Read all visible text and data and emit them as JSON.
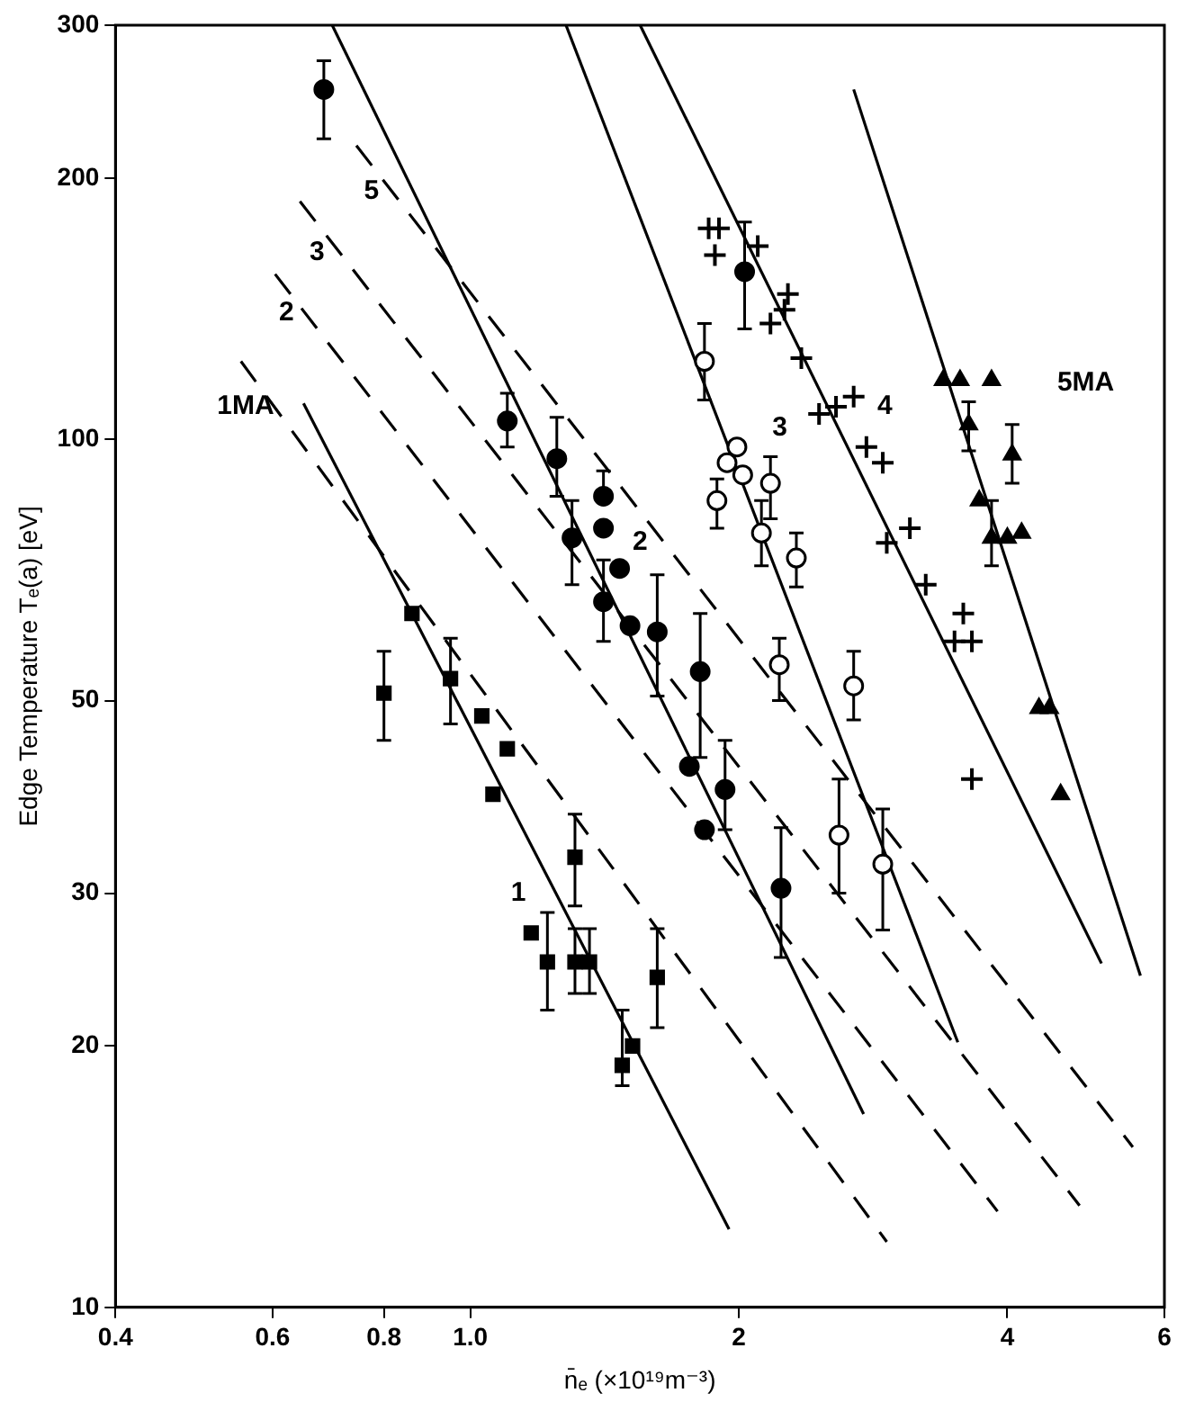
{
  "chart_data": {
    "type": "scatter",
    "xlabel": "n̄ₑ (×10¹⁹m⁻³)",
    "ylabel": "Edge Temperature Tₑ(a) [eV]",
    "log": "xy",
    "grid": false,
    "legend": false,
    "xlim": [
      0.4,
      6
    ],
    "ylim": [
      10,
      300
    ],
    "xticks": [
      0.4,
      0.6,
      0.8,
      {
        "value": 1,
        "label": "1.0"
      },
      2,
      4,
      6
    ],
    "yticks": [
      10,
      20,
      30,
      50,
      100,
      200,
      300
    ],
    "annotations": [
      "1MA",
      "2",
      "3",
      "5",
      "1",
      "2",
      "3",
      "4",
      "5MA"
    ],
    "series": [
      {
        "marker": "square",
        "color": "#000000",
        "x": [
          0.8,
          0.86,
          0.95,
          1.03,
          1.1,
          1.06,
          1.31,
          1.17,
          1.22,
          1.31,
          1.36,
          1.62,
          1.52,
          1.48
        ],
        "values": [
          51,
          63,
          53,
          48,
          44,
          39,
          33,
          27,
          25,
          25,
          25,
          24,
          20,
          19
        ],
        "errors": [
          [
            45,
            57
          ],
          null,
          [
            47,
            59
          ],
          null,
          null,
          null,
          [
            29,
            37
          ],
          null,
          [
            22,
            28.5
          ],
          [
            23,
            27.3
          ],
          [
            23,
            27.3
          ],
          [
            21,
            27.3
          ],
          null,
          [
            18,
            22
          ]
        ]
      },
      {
        "marker": "circle",
        "color": "#000000",
        "x": [
          0.685,
          1.1,
          1.25,
          1.3,
          1.41,
          1.41,
          1.47,
          1.41,
          1.51,
          1.62,
          1.81,
          1.76,
          1.93,
          1.83,
          2.23,
          2.03
        ],
        "values": [
          253,
          105,
          95,
          77,
          86,
          79,
          71,
          65,
          61,
          60,
          54,
          42,
          39.5,
          35.5,
          30.4,
          156
        ],
        "errors": [
          [
            222,
            273
          ],
          [
            98,
            113
          ],
          [
            86,
            106
          ],
          [
            68,
            85
          ],
          [
            86,
            92
          ],
          null,
          null,
          [
            58.5,
            72.6
          ],
          null,
          [
            50.6,
            69.8
          ],
          [
            43,
            63
          ],
          null,
          [
            35.5,
            45
          ],
          null,
          [
            25.3,
            35.7
          ],
          [
            134,
            178
          ]
        ]
      },
      {
        "marker": "circle",
        "color": "#ffffff",
        "x": [
          1.83,
          1.99,
          1.94,
          2.02,
          1.89,
          2.17,
          2.12,
          2.32,
          2.22,
          2.69,
          2.59,
          2.9
        ],
        "values": [
          123,
          98,
          94,
          91,
          85,
          89,
          78,
          73,
          55,
          52,
          35,
          32.4
        ],
        "errors": [
          [
            111,
            136
          ],
          null,
          null,
          null,
          [
            79,
            90
          ],
          [
            81,
            95.5
          ],
          [
            71.5,
            85
          ],
          [
            67.6,
            78
          ],
          [
            50,
            59
          ],
          [
            47.5,
            57
          ],
          [
            30,
            40.6
          ],
          [
            27.2,
            37.5
          ]
        ]
      },
      {
        "marker": "cross",
        "color": "#000000",
        "x": [
          1.85,
          1.9,
          1.88,
          2.1,
          2.27,
          2.25,
          2.17,
          2.35,
          2.46,
          2.57,
          2.69,
          2.78,
          2.9,
          2.93,
          3.11,
          3.24,
          3.57,
          3.49,
          3.65,
          3.65
        ],
        "values": [
          175,
          175,
          163,
          167,
          147,
          141,
          136,
          124,
          107,
          109,
          112,
          98,
          94,
          76,
          79,
          68,
          63,
          58.5,
          58.5,
          40.6
        ]
      },
      {
        "marker": "triangle",
        "color": "#000000",
        "x": [
          3.39,
          3.54,
          3.84,
          3.62,
          4.05,
          3.72,
          3.84,
          4.0,
          4.15,
          4.34,
          4.46,
          4.59
        ],
        "values": [
          117,
          117,
          117,
          104,
          96,
          85,
          77,
          77,
          78,
          49,
          49,
          39
        ],
        "errors": [
          null,
          null,
          null,
          [
            97,
            110.5
          ],
          [
            89,
            104
          ],
          null,
          [
            71.5,
            85
          ],
          null,
          null,
          null,
          null,
          null
        ]
      },
      {
        "type": "line",
        "line_style": "solid",
        "color": "#000000",
        "x": [
          0.65,
          1.95
        ],
        "values": [
          110,
          12.3
        ]
      },
      {
        "type": "line",
        "line_style": "solid",
        "color": "#000000",
        "x": [
          0.7,
          2.76
        ],
        "values": [
          300,
          16.7
        ]
      },
      {
        "type": "line",
        "line_style": "solid",
        "color": "#000000",
        "x": [
          1.28,
          3.52
        ],
        "values": [
          300,
          20.2
        ]
      },
      {
        "type": "line",
        "line_style": "solid",
        "color": "#000000",
        "x": [
          1.55,
          5.1
        ],
        "values": [
          300,
          24.9
        ]
      },
      {
        "type": "line",
        "line_style": "solid",
        "color": "#000000",
        "x": [
          2.69,
          5.64
        ],
        "values": [
          253,
          24.1
        ]
      },
      {
        "type": "line",
        "line_style": "dashed",
        "color": "#000000",
        "x": [
          0.553,
          2.93
        ],
        "values": [
          123,
          11.9
        ]
      },
      {
        "type": "line",
        "line_style": "dashed",
        "color": "#000000",
        "x": [
          0.604,
          3.9
        ],
        "values": [
          155,
          12.9
        ]
      },
      {
        "type": "line",
        "line_style": "dashed",
        "color": "#000000",
        "x": [
          0.644,
          4.82
        ],
        "values": [
          188,
          13.1
        ]
      },
      {
        "type": "line",
        "line_style": "dashed",
        "color": "#000000",
        "x": [
          0.745,
          5.53
        ],
        "values": [
          218,
          15.3
        ]
      }
    ]
  }
}
